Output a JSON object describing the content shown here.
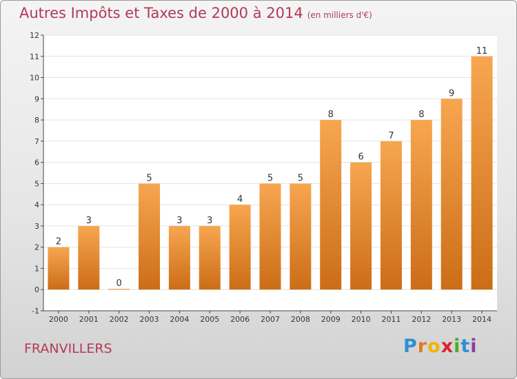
{
  "title": "Autres Impôts et Taxes de 2000 à 2014",
  "unit_note": "(en milliers d'€)",
  "commune": "FRANVILLERS",
  "logo": {
    "text": "Proxiti",
    "letters": [
      "P",
      "r",
      "o",
      "x",
      "i",
      "t",
      "i"
    ],
    "letter_colors": [
      "#2d8fd5",
      "#e07b1a",
      "#f0b400",
      "#d8242c",
      "#4aaa2e",
      "#2d8fd5",
      "#8b3fa0"
    ]
  },
  "colors": {
    "bar_top": "#f7a650",
    "bar_bottom": "#cc6d17",
    "accent_text": "#b03a57",
    "axis": "#444444",
    "grid": "#e2e2e2"
  },
  "chart_data": {
    "type": "bar",
    "categories": [
      "2000",
      "2001",
      "2002",
      "2003",
      "2004",
      "2005",
      "2006",
      "2007",
      "2008",
      "2009",
      "2010",
      "2011",
      "2012",
      "2013",
      "2014"
    ],
    "values": [
      2,
      3,
      0,
      5,
      3,
      3,
      4,
      5,
      5,
      8,
      6,
      7,
      8,
      9,
      11
    ],
    "ylim": [
      -1,
      12
    ],
    "yticks": [
      -1,
      0,
      1,
      2,
      3,
      4,
      5,
      6,
      7,
      8,
      9,
      10,
      11,
      12
    ],
    "xlabel": "",
    "ylabel": "",
    "grid": true,
    "legend": "none"
  }
}
